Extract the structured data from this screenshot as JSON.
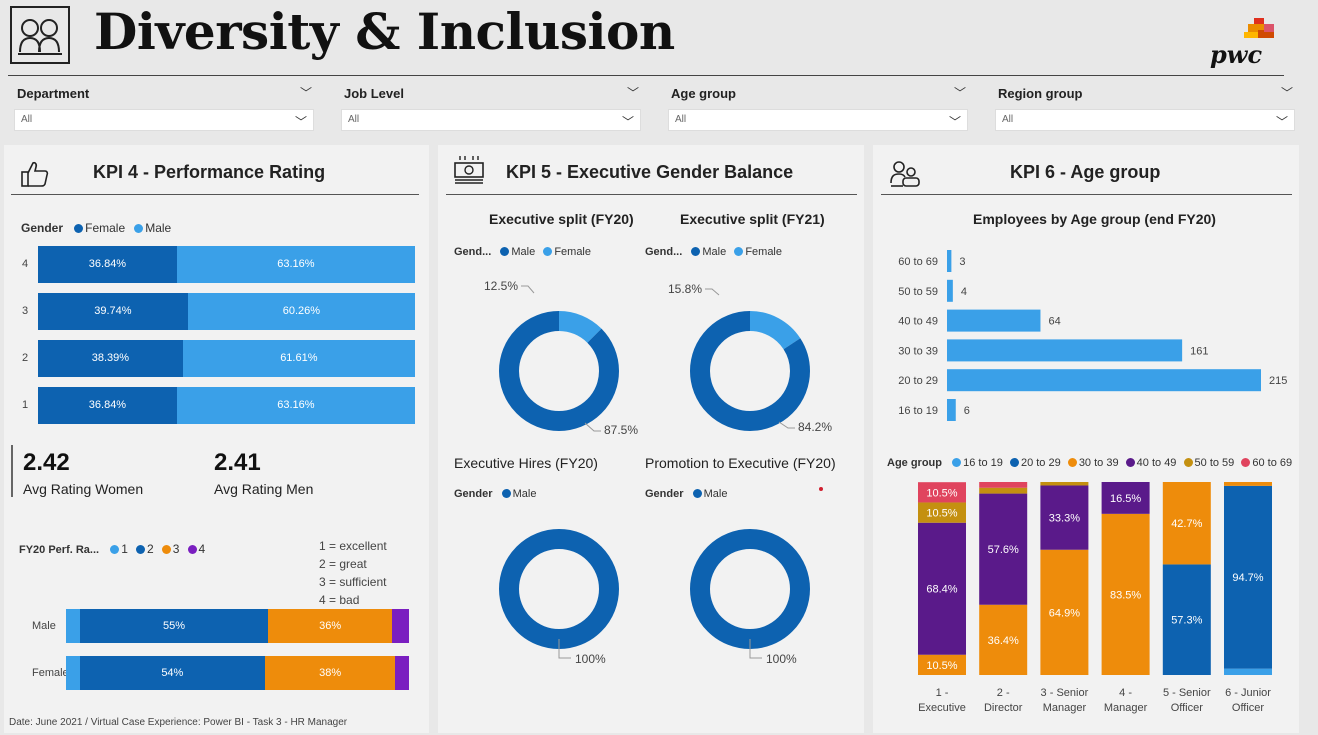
{
  "header": {
    "title": "Diversity & Inclusion",
    "brand": "pwc",
    "logo_icon": "people-icon"
  },
  "slicers": [
    {
      "label": "Department",
      "value": "All"
    },
    {
      "label": "Job Level",
      "value": "All"
    },
    {
      "label": "Age group",
      "value": "All"
    },
    {
      "label": "Region group",
      "value": "All"
    }
  ],
  "kpi4": {
    "title": "KPI 4 - Performance Rating",
    "icon": "thumbs-up-icon",
    "gender_legend": {
      "title": "Gender",
      "items": [
        "Female",
        "Male"
      ]
    },
    "rating_split": {
      "categories": [
        "4",
        "3",
        "2",
        "1"
      ],
      "female": [
        36.84,
        39.74,
        38.39,
        36.84
      ],
      "male": [
        63.16,
        60.26,
        61.61,
        63.16
      ],
      "female_labels": [
        "36.84%",
        "39.74%",
        "38.39%",
        "36.84%"
      ],
      "male_labels": [
        "63.16%",
        "60.26%",
        "61.61%",
        "63.16%"
      ]
    },
    "avg_women": {
      "value": "2.42",
      "label": "Avg Rating Women"
    },
    "avg_men": {
      "value": "2.41",
      "label": "Avg Rating Men"
    },
    "perf_legend": {
      "title": "FY20 Perf. Ra...",
      "items": [
        "1",
        "2",
        "3",
        "4"
      ]
    },
    "scale_notes": [
      "1 = excellent",
      "2 = great",
      "3 = sufficient",
      "4 = bad"
    ],
    "perf_dist": {
      "categories": [
        "Male",
        "Female"
      ],
      "series": [
        {
          "name": "1",
          "values": [
            4,
            4
          ]
        },
        {
          "name": "2",
          "values": [
            55,
            54
          ]
        },
        {
          "name": "3",
          "values": [
            36,
            38
          ]
        },
        {
          "name": "4",
          "values": [
            5,
            4
          ]
        }
      ],
      "labels": [
        [
          "",
          "55%",
          "36%",
          ""
        ],
        [
          "",
          "54%",
          "38%",
          ""
        ]
      ]
    }
  },
  "kpi5": {
    "title": "KPI 5 - Executive Gender Balance",
    "icon": "money-icon",
    "donut_fy20": {
      "title": "Executive split (FY20)",
      "legend_title": "Gend...",
      "legend": [
        "Male",
        "Female"
      ],
      "male": 87.5,
      "female": 12.5,
      "male_label": "87.5%",
      "female_label": "12.5%"
    },
    "donut_fy21": {
      "title": "Executive split (FY21)",
      "legend_title": "Gend...",
      "legend": [
        "Male",
        "Female"
      ],
      "male": 84.2,
      "female": 15.8,
      "male_label": "84.2%",
      "female_label": "15.8%"
    },
    "donut_hires": {
      "title": "Executive Hires (FY20)",
      "legend_title": "Gender",
      "legend": [
        "Male"
      ],
      "male": 100,
      "male_label": "100%"
    },
    "donut_promo": {
      "title": "Promotion to Executive (FY20)",
      "legend_title": "Gender",
      "legend": [
        "Male"
      ],
      "male": 100,
      "male_label": "100%"
    }
  },
  "kpi6": {
    "title": "KPI 6 - Age group",
    "icon": "users-icon",
    "emp_chart": {
      "title": "Employees by Age group (end FY20)",
      "categories": [
        "60 to 69",
        "50 to 59",
        "40 to 49",
        "30 to 39",
        "20 to 29",
        "16 to 19"
      ],
      "values": [
        3,
        4,
        64,
        161,
        215,
        6
      ],
      "labels": [
        "3",
        "4",
        "64",
        "161",
        "215",
        "6"
      ]
    },
    "age_legend": {
      "title": "Age group",
      "items": [
        "16 to 19",
        "20 to 29",
        "30 to 39",
        "40 to 49",
        "50 to 59",
        "60 to 69"
      ]
    },
    "level_chart": {
      "categories": [
        [
          "1 -",
          "Executive"
        ],
        [
          "2 -",
          "Director"
        ],
        [
          "3 - Senior",
          "Manager"
        ],
        [
          "4 -",
          "Manager"
        ],
        [
          "5 - Senior",
          "Officer"
        ],
        [
          "6 - Junior",
          "Officer"
        ]
      ],
      "series": [
        {
          "name": "16 to 19",
          "values": [
            0,
            0,
            0,
            0,
            0,
            3.3
          ]
        },
        {
          "name": "20 to 29",
          "values": [
            0,
            0,
            0,
            0,
            57.3,
            94.7
          ]
        },
        {
          "name": "30 to 39",
          "values": [
            10.5,
            36.4,
            64.9,
            83.5,
            42.7,
            2.0
          ]
        },
        {
          "name": "40 to 49",
          "values": [
            68.4,
            57.6,
            33.3,
            16.5,
            0,
            0
          ]
        },
        {
          "name": "50 to 59",
          "values": [
            10.5,
            3.0,
            1.8,
            0,
            0,
            0
          ]
        },
        {
          "name": "60 to 69",
          "values": [
            10.5,
            3.0,
            0,
            0,
            0,
            0
          ]
        }
      ],
      "labels": [
        [
          "",
          "",
          "10.5%",
          "68.4%",
          "10.5%",
          "10.5%"
        ],
        [
          "",
          "",
          "36.4%",
          "57.6%",
          "",
          ""
        ],
        [
          "",
          "",
          "64.9%",
          "33.3%",
          "",
          ""
        ],
        [
          "",
          "",
          "83.5%",
          "16.5%",
          "",
          ""
        ],
        [
          "",
          "57.3%",
          "42.7%",
          "",
          "",
          ""
        ],
        [
          "",
          "94.7%",
          "",
          "",
          "",
          ""
        ]
      ]
    }
  },
  "colors": {
    "dark_blue": "#0d62b0",
    "light_blue": "#3aa0e8",
    "orange": "#ee8c0b",
    "purple": "#5a1a8a",
    "violet": "#7a1fc0",
    "gold": "#c49010",
    "red": "#e0445e"
  },
  "footer": "Date: June 2021 / Virtual Case Experience: Power BI - Task 3 - HR Manager"
}
